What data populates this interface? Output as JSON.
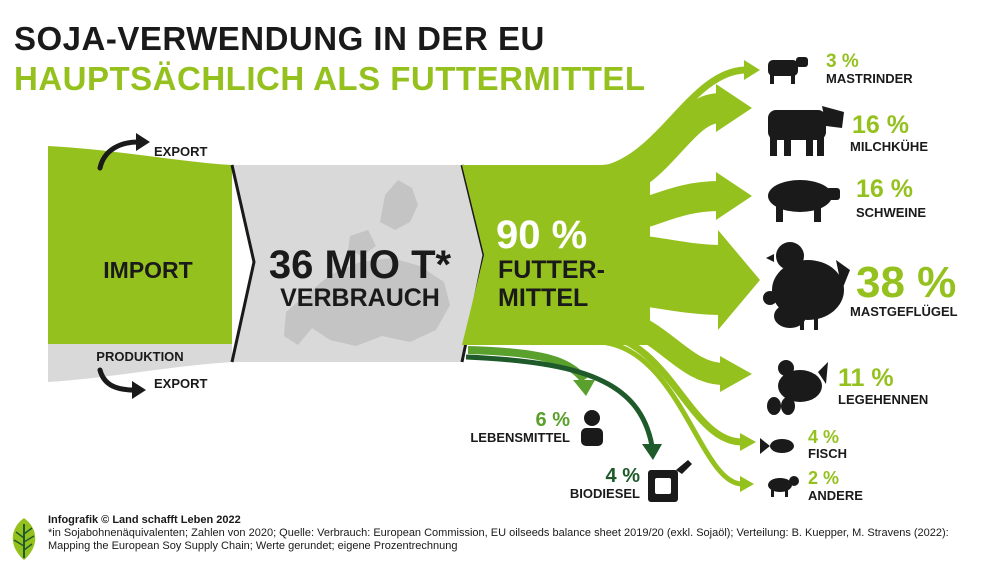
{
  "title": {
    "line1": "SOJA-VERWENDUNG IN DER EU",
    "line2": "HAUPTSÄCHLICH ALS FUTTERMITTEL"
  },
  "colors": {
    "green": "#95c11f",
    "dark_green": "#1e5a2a",
    "mid_green": "#5aa02c",
    "gray": "#d9d9d9",
    "black": "#1a1a1a"
  },
  "sources": {
    "import_label": "IMPORT",
    "production_label": "PRODUKTION",
    "export_top": "EXPORT",
    "export_bottom": "EXPORT"
  },
  "center": {
    "value": "36 MIO T*",
    "label": "VERBRAUCH"
  },
  "feed": {
    "percent": "90 %",
    "label_line1": "FUTTER-",
    "label_line2": "MITTEL"
  },
  "outputs": [
    {
      "percent": "3 %",
      "label": "MASTRINDER",
      "icon": "cattle-icon"
    },
    {
      "percent": "16 %",
      "label": "MILCHKÜHE",
      "icon": "cow-icon"
    },
    {
      "percent": "16 %",
      "label": "SCHWEINE",
      "icon": "pig-icon"
    },
    {
      "percent": "38 %",
      "label": "MASTGEFLÜGEL",
      "icon": "chicken-icon"
    },
    {
      "percent": "11 %",
      "label": "LEGEHENNEN",
      "icon": "hen-egg-icon"
    },
    {
      "percent": "4 %",
      "label": "FISCH",
      "icon": "fish-icon"
    },
    {
      "percent": "2 %",
      "label": "ANDERE",
      "icon": "sheep-icon"
    }
  ],
  "other_uses": [
    {
      "percent": "6 %",
      "label": "LEBENSMITTEL",
      "icon": "person-icon"
    },
    {
      "percent": "4 %",
      "label": "BIODIESEL",
      "icon": "fuel-can-icon"
    }
  ],
  "footer": {
    "credit": "Infografik © Land schafft Leben 2022",
    "note": "*in Sojabohnenäquivalenten; Zahlen von 2020; Quelle: Verbrauch: European Commission, EU oilseeds balance sheet 2019/20 (exkl. Sojaöl); Verteilung: B. Kuepper, M. Stravens (2022): Mapping the European Soy Supply Chain; Werte gerundet; eigene Prozentrechnung"
  }
}
